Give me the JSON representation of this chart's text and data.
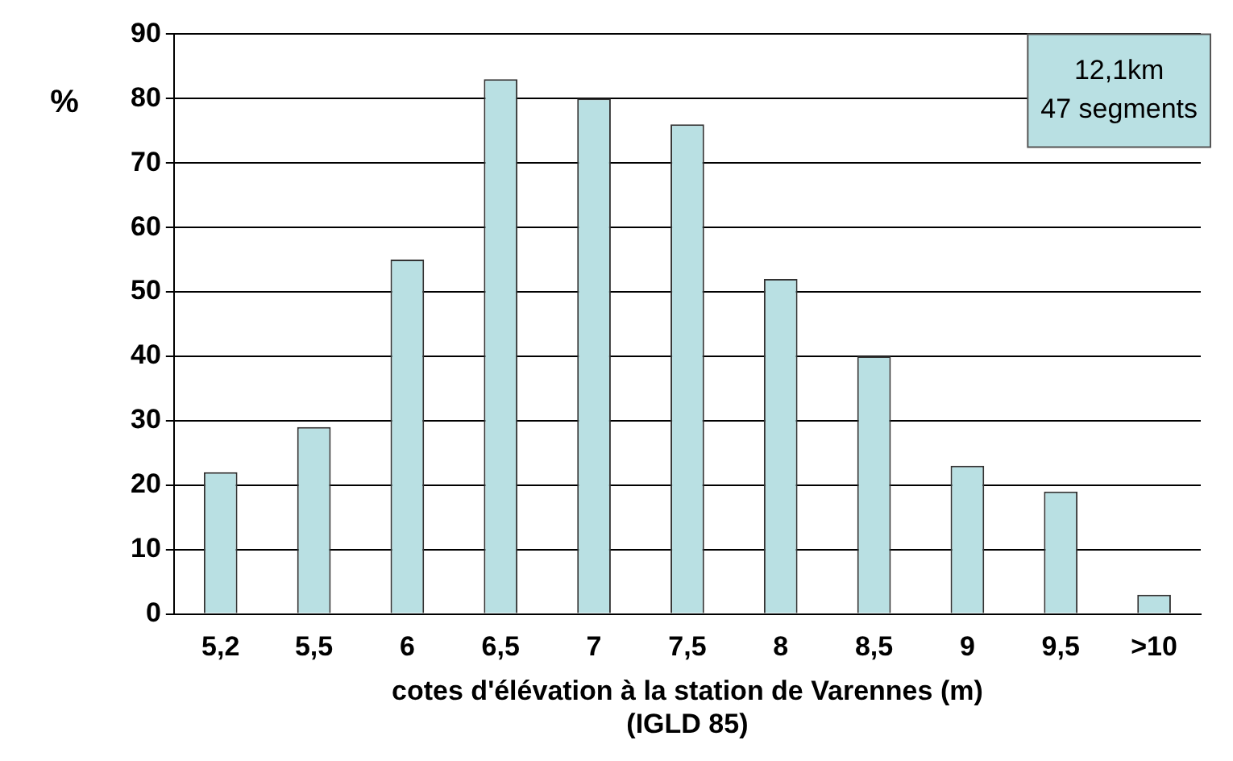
{
  "chart_data": {
    "type": "bar",
    "categories": [
      "5,2",
      "5,5",
      "6",
      "6,5",
      "7",
      "7,5",
      "8",
      "8,5",
      "9",
      "9,5",
      ">10"
    ],
    "values": [
      22,
      29,
      55,
      83,
      80,
      76,
      52,
      40,
      23,
      19,
      3
    ],
    "color": "#b9e0e3",
    "ylabel": "%",
    "xlabel": "cotes d'élévation à la station de Varennes (m)\n(IGLD 85)",
    "ylim": [
      0,
      90
    ],
    "yticks": [
      0,
      10,
      20,
      30,
      40,
      50,
      60,
      70,
      80,
      90
    ],
    "grid": "y",
    "legend": false,
    "annotations": [
      "12,1km\n47 segments"
    ]
  }
}
